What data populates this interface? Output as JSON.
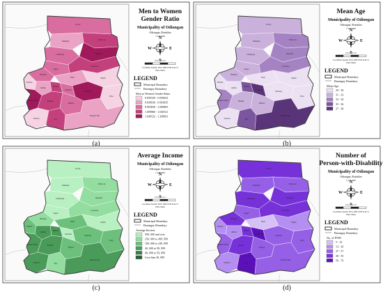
{
  "panels": [
    {
      "key": "a",
      "caption": "(a)",
      "title_lines": [
        "Men to Women",
        "Gender Ratio"
      ],
      "municipality": "Municipality of Odiongan",
      "province": "Odiongan, Romblon",
      "scale_text": "1:100,000",
      "scale_numbers": "0 0.5 1   2   3   4",
      "coord_text": "Coordinate System: WGS 1984 UTM Zone 51",
      "units_text": "Units: Meter",
      "legend_title": "LEGEND",
      "boundary_labels": [
        "Municipal Boundary",
        "Barangay Boundary"
      ],
      "class_title": "Men to Women Gender Ratio",
      "classes": [
        {
          "label": "0.839339 - 0.839635",
          "color": "#f6d3e3"
        },
        {
          "label": "0.839636 - 0.963835",
          "color": "#eaa3c4"
        },
        {
          "label": "0.963836 - 1.000865",
          "color": "#d96d9f"
        },
        {
          "label": "1.000866 - 1.040521",
          "color": "#c4407c"
        },
        {
          "label": "1.040522 - 1.208661",
          "color": "#a0195a"
        }
      ],
      "region_class": [
        2,
        3,
        1,
        4,
        2,
        2,
        3,
        0,
        2,
        1,
        0,
        1,
        3,
        2,
        4,
        4,
        3,
        2,
        0,
        0,
        3,
        1
      ],
      "region_names": [
        "Poctoy",
        "Tabobo-an",
        "Tumingad",
        "Dapawan",
        "Canduyong",
        "Ligaya",
        "Liwayway",
        "Mayha",
        "Budiong",
        "Rizal",
        "Tuburan",
        "Anahao",
        "Batiano",
        "Gabawan",
        "Amatong",
        "Progreso Weste",
        "Panique",
        "Bangon",
        "Patoo",
        "Libertad",
        "Pajo",
        "Progreso Este"
      ]
    },
    {
      "key": "b",
      "caption": "(b)",
      "title_lines": [
        "Mean Age"
      ],
      "municipality": "Municipality of Odiongan",
      "province": "Odiongan, Romblon",
      "scale_text": "1:100,000",
      "scale_numbers": "0 0.5 1   2   3   4",
      "coord_text": "Coordinate System: WGS 1984 UTM Zone 51",
      "units_text": "Units: Meter",
      "legend_title": "LEGEND",
      "boundary_labels": [
        "Municipal Boundary",
        "Barangay Boundary"
      ],
      "class_title": "Mean Age",
      "classes": [
        {
          "label": "29 - 30",
          "color": "#ebe1f2"
        },
        {
          "label": "31 - 32",
          "color": "#c9b1dc"
        },
        {
          "label": "33 - 34",
          "color": "#a583c2"
        },
        {
          "label": "35 - 36",
          "color": "#7c559f"
        },
        {
          "label": "37 - 38",
          "color": "#5a3479"
        }
      ],
      "region_class": [
        1,
        2,
        1,
        2,
        1,
        1,
        2,
        0,
        1,
        0,
        0,
        0,
        3,
        4,
        0,
        2,
        1,
        1,
        0,
        0,
        3,
        4
      ],
      "region_names": [
        "Poctoy",
        "Tabobo-an",
        "Tumingad",
        "Dapawan",
        "Canduyong",
        "Ligaya",
        "Liwayway",
        "Mayha",
        "Budiong",
        "Rizal",
        "Tuburan",
        "Anahao",
        "Batiano",
        "Gabawan",
        "Amatong",
        "Progreso Weste",
        "Panique",
        "Bangon",
        "Patoo",
        "Libertad",
        "Pajo",
        "Progreso Este"
      ]
    },
    {
      "key": "c",
      "caption": "(c)",
      "title_lines": [
        "Average Income"
      ],
      "municipality": "Municipality of Odiongan",
      "province": "Odiongan, Romblon",
      "scale_text": "1:100,000",
      "scale_numbers": "0 0.5 1   2   3   4",
      "coord_text": "Coordinate System: WGS 1984 UTM Zone 51",
      "units_text": "Units: Meter",
      "legend_title": "LEGEND",
      "boundary_labels": [
        "Municipal Boundary",
        "Barangay Boundary"
      ],
      "class_title": "Average Income",
      "classes": [
        {
          "label": "500, 000 and over",
          "color": "#b8f0c2"
        },
        {
          "label": "250, 000 to 499, 999",
          "color": "#92dd9f"
        },
        {
          "label": "100, 000 to 249, 999",
          "color": "#6cc07b"
        },
        {
          "label": "40, 000 to 99, 999",
          "color": "#4a9b5a"
        },
        {
          "label": "40, 000 to 59, 999",
          "color": "#3c7d49"
        },
        {
          "label": "Less than 40, 000",
          "color": "#2f5f39"
        }
      ],
      "region_class": [
        0,
        1,
        0,
        1,
        0,
        0,
        1,
        0,
        1,
        2,
        2,
        3,
        3,
        0,
        2,
        3,
        3,
        2,
        2,
        3,
        1,
        3
      ],
      "region_names": [
        "Poctoy",
        "Tabobo-an",
        "Tumingad",
        "Dapawan",
        "Canduyong",
        "Ligaya",
        "Liwayway",
        "Mayha",
        "Budiong",
        "Rizal",
        "Tuburan",
        "Anahao",
        "Batiano",
        "Gabawan",
        "Amatong",
        "Progreso Weste",
        "Panique",
        "Bangon",
        "Patoo",
        "Libertad",
        "Pajo",
        "Progreso Este"
      ]
    },
    {
      "key": "d",
      "caption": "(d)",
      "title_lines": [
        "Number of",
        "Person-with-Disability"
      ],
      "municipality": "Municipality of Odiongan",
      "province": "Odiongan, Romblon",
      "scale_text": "1:100,000",
      "scale_numbers": "0 0.5 1   2   3   4",
      "coord_text": "Coordinate System: WGS 1984 UTM Zone 51",
      "units_text": "Units: Meter",
      "legend_title": "LEGEND",
      "boundary_labels": [
        "Municipal Boundary",
        "Barangay Boundary"
      ],
      "class_title": "No. of PWD",
      "classes": [
        {
          "label": "5 - 12",
          "color": "#d6c1f7"
        },
        {
          "label": "13 - 26",
          "color": "#b48ef0"
        },
        {
          "label": "27 - 37",
          "color": "#9560e6"
        },
        {
          "label": "38 - 55",
          "color": "#7632d8"
        },
        {
          "label": "56 - 76",
          "color": "#5a11b8"
        }
      ],
      "region_class": [
        3,
        2,
        2,
        3,
        3,
        2,
        3,
        1,
        3,
        0,
        1,
        1,
        3,
        4,
        2,
        2,
        3,
        2,
        2,
        1,
        4,
        2
      ],
      "region_names": [
        "Poctoy",
        "Tabobo-an",
        "Tumingad",
        "Dapawan",
        "Canduyong",
        "Ligaya",
        "Liwayway",
        "Mayha",
        "Budiong",
        "Rizal",
        "Tuburan",
        "Anahao",
        "Batiano",
        "Gabawan",
        "Amatong",
        "Progreso Weste",
        "Panique",
        "Bangon",
        "Patoo",
        "Libertad",
        "Pajo",
        "Progreso Este"
      ]
    }
  ],
  "compass_letters": [
    "N",
    "E",
    "S",
    "W"
  ]
}
